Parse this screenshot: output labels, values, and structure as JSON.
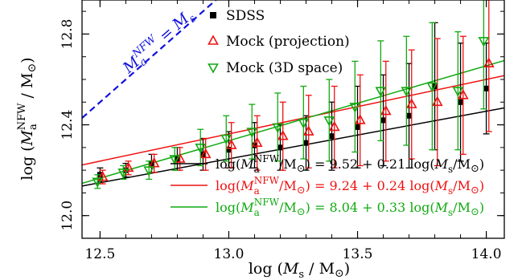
{
  "chart_data": {
    "type": "scatter",
    "title": "",
    "xlabel": "log (M_s / M_⊙)",
    "ylabel": "log (M_a^NFW / M_⊙)",
    "xlim": [
      12.43,
      14.07
    ],
    "ylim": [
      11.9,
      12.95
    ],
    "x_ticks": [
      12.5,
      13.0,
      13.5,
      14.0
    ],
    "x_tick_labels": [
      "12.5",
      "13.0",
      "13.5",
      "14.0"
    ],
    "y_ticks": [
      12.0,
      12.4,
      12.8
    ],
    "y_tick_labels": [
      "12.0",
      "12.4",
      "12.8"
    ],
    "grid": false,
    "legend_position": "top-right",
    "series": [
      {
        "name": "SDSS",
        "marker": "filled-square",
        "color": "#000000",
        "x": [
          12.5,
          12.6,
          12.7,
          12.8,
          12.9,
          13.0,
          13.1,
          13.2,
          13.3,
          13.4,
          13.5,
          13.6,
          13.7,
          13.8,
          13.9,
          14.0
        ],
        "y": [
          12.18,
          12.2,
          12.23,
          12.25,
          12.27,
          12.29,
          12.31,
          12.3,
          12.32,
          12.35,
          12.39,
          12.42,
          12.44,
          12.57,
          12.5,
          12.56
        ],
        "err": [
          0.03,
          0.03,
          0.04,
          0.05,
          0.07,
          0.08,
          0.1,
          0.1,
          0.12,
          0.15,
          0.18,
          0.2,
          0.23,
          0.28,
          0.26,
          0.2
        ],
        "offset": 0.0
      },
      {
        "name": "Mock (projection)",
        "marker": "open-triangle-up",
        "color": "#ee1111",
        "x": [
          12.5,
          12.6,
          12.7,
          12.8,
          12.9,
          13.0,
          13.1,
          13.2,
          13.3,
          13.4,
          13.5,
          13.6,
          13.7,
          13.8,
          13.9,
          14.0
        ],
        "y": [
          12.17,
          12.21,
          12.23,
          12.25,
          12.27,
          12.31,
          12.32,
          12.35,
          12.37,
          12.39,
          12.42,
          12.46,
          12.49,
          12.5,
          12.53,
          12.67
        ],
        "err": [
          0.03,
          0.03,
          0.04,
          0.05,
          0.07,
          0.1,
          0.12,
          0.15,
          0.16,
          0.18,
          0.2,
          0.22,
          0.24,
          0.28,
          0.26,
          0.3
        ],
        "offset": 0.01
      },
      {
        "name": "Mock (3D space)",
        "marker": "open-triangle-down",
        "color": "#11aa11",
        "x": [
          12.5,
          12.6,
          12.7,
          12.8,
          12.9,
          13.0,
          13.1,
          13.2,
          13.3,
          13.4,
          13.5,
          13.6,
          13.7,
          13.8,
          13.9,
          14.0
        ],
        "y": [
          12.15,
          12.19,
          12.2,
          12.25,
          12.3,
          12.34,
          12.37,
          12.39,
          12.41,
          12.42,
          12.48,
          12.55,
          12.55,
          12.57,
          12.55,
          12.77
        ],
        "err": [
          0.03,
          0.03,
          0.04,
          0.05,
          0.08,
          0.1,
          0.12,
          0.15,
          0.16,
          0.18,
          0.2,
          0.22,
          0.24,
          0.28,
          0.26,
          0.3
        ],
        "offset": -0.01
      }
    ],
    "fits": [
      {
        "color": "#000000",
        "intercept": 9.52,
        "slope": 0.21,
        "label_a": "log(M",
        "label_sub": "a",
        "label_sup": "NFW",
        "label_b": "/M",
        "label_c": ") = 9.52 + 0.21 log(M",
        "label_sub2": "s",
        "label_d": "/M",
        "label_e": ")"
      },
      {
        "color": "#ee1111",
        "intercept": 9.24,
        "slope": 0.24,
        "label_a": "log(M",
        "label_sub": "a",
        "label_sup": "NFW",
        "label_b": "/M",
        "label_c": ") = 9.24 + 0.24 log(M",
        "label_sub2": "s",
        "label_d": "/M",
        "label_e": ")"
      },
      {
        "color": "#11aa11",
        "intercept": 8.04,
        "slope": 0.33,
        "label_a": "log(M",
        "label_sub": "a",
        "label_sup": "NFW",
        "label_b": "/M",
        "label_c": ") = 8.04 + 0.33 log(M",
        "label_sub2": "s",
        "label_d": "/M",
        "label_e": ")"
      }
    ],
    "identity_line": {
      "color": "#1111dd",
      "label_left": "M",
      "label_sub": "a",
      "label_sup": "NFW",
      "label_mid": " = M",
      "label_sub2": "s"
    },
    "sun_symbol": "⊙"
  }
}
